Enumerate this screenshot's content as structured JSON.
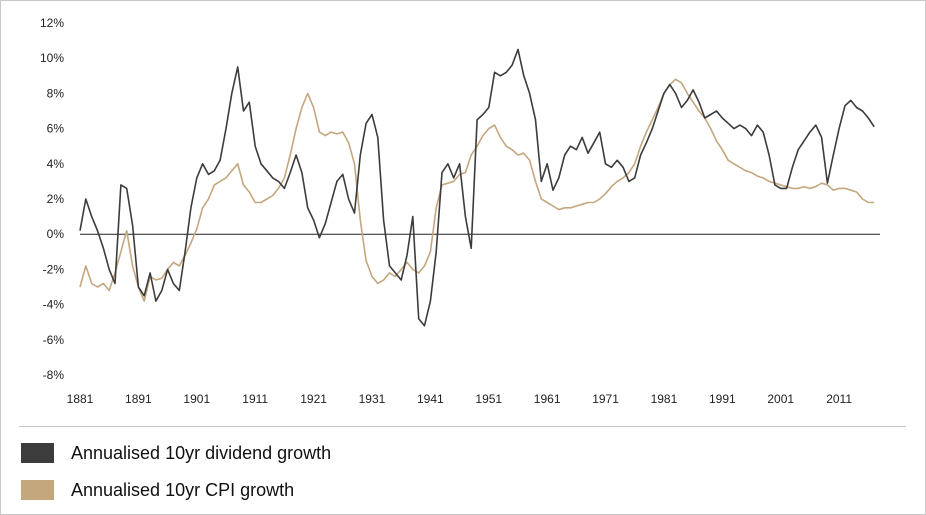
{
  "chart_data": {
    "type": "line",
    "title": "",
    "xlabel": "",
    "ylabel": "",
    "xlim": [
      1881,
      2018
    ],
    "ylim": [
      -8,
      12
    ],
    "y_ticks": [
      12,
      10,
      8,
      6,
      4,
      2,
      0,
      -2,
      -4,
      -6,
      -8
    ],
    "y_tick_labels": [
      "12%",
      "10%",
      "8%",
      "6%",
      "4%",
      "2%",
      "0%",
      "-2%",
      "-4%",
      "-6%",
      "-8%"
    ],
    "x_ticks": [
      1881,
      1891,
      1901,
      1911,
      1921,
      1931,
      1941,
      1951,
      1961,
      1971,
      1981,
      1991,
      2001,
      2011
    ],
    "x_tick_labels": [
      "1881",
      "1891",
      "1901",
      "1911",
      "1921",
      "1931",
      "1941",
      "1951",
      "1961",
      "1971",
      "1981",
      "1991",
      "2001",
      "2011"
    ],
    "grid": false,
    "legend_position": "bottom-left",
    "series": [
      {
        "name": "Annualised 10yr dividend growth",
        "color": "#3c3c3c",
        "x": [
          1881,
          1882,
          1883,
          1884,
          1885,
          1886,
          1887,
          1888,
          1889,
          1890,
          1891,
          1892,
          1893,
          1894,
          1895,
          1896,
          1897,
          1898,
          1899,
          1900,
          1901,
          1902,
          1903,
          1904,
          1905,
          1906,
          1907,
          1908,
          1909,
          1910,
          1911,
          1912,
          1913,
          1914,
          1915,
          1916,
          1917,
          1918,
          1919,
          1920,
          1921,
          1922,
          1923,
          1924,
          1925,
          1926,
          1927,
          1928,
          1929,
          1930,
          1931,
          1932,
          1933,
          1934,
          1935,
          1936,
          1937,
          1938,
          1939,
          1940,
          1941,
          1942,
          1943,
          1944,
          1945,
          1946,
          1947,
          1948,
          1949,
          1950,
          1951,
          1952,
          1953,
          1954,
          1955,
          1956,
          1957,
          1958,
          1959,
          1960,
          1961,
          1962,
          1963,
          1964,
          1965,
          1966,
          1967,
          1968,
          1969,
          1970,
          1971,
          1972,
          1973,
          1974,
          1975,
          1976,
          1977,
          1978,
          1979,
          1980,
          1981,
          1982,
          1983,
          1984,
          1985,
          1986,
          1987,
          1988,
          1989,
          1990,
          1991,
          1992,
          1993,
          1994,
          1995,
          1996,
          1997,
          1998,
          1999,
          2000,
          2001,
          2002,
          2003,
          2004,
          2005,
          2006,
          2007,
          2008,
          2009,
          2010,
          2011,
          2012,
          2013,
          2014,
          2015,
          2016,
          2017
        ],
        "values": [
          0.2,
          2.0,
          1.0,
          0.2,
          -0.8,
          -2.0,
          -2.8,
          2.8,
          2.6,
          0.5,
          -3.0,
          -3.5,
          -2.2,
          -3.8,
          -3.2,
          -2.0,
          -2.8,
          -3.2,
          -1.0,
          1.5,
          3.2,
          4.0,
          3.4,
          3.6,
          4.2,
          6.0,
          8.0,
          9.5,
          7.0,
          7.5,
          5.0,
          4.0,
          3.6,
          3.2,
          3.0,
          2.6,
          3.5,
          4.5,
          3.5,
          1.5,
          0.8,
          -0.2,
          0.6,
          1.8,
          3.0,
          3.4,
          2.0,
          1.2,
          4.5,
          6.3,
          6.8,
          5.5,
          0.8,
          -1.8,
          -2.2,
          -2.6,
          -1.2,
          1.0,
          -4.8,
          -5.2,
          -3.8,
          -1.0,
          3.5,
          4.0,
          3.2,
          4.0,
          1.0,
          -0.8,
          6.5,
          6.8,
          7.2,
          9.2,
          9.0,
          9.2,
          9.6,
          10.5,
          9.0,
          8.0,
          6.5,
          3.0,
          4.0,
          2.5,
          3.2,
          4.5,
          5.0,
          4.8,
          5.5,
          4.6,
          5.2,
          5.8,
          4.0,
          3.8,
          4.2,
          3.8,
          3.0,
          3.2,
          4.5,
          5.2,
          6.0,
          7.0,
          8.0,
          8.5,
          8.0,
          7.2,
          7.6,
          8.2,
          7.5,
          6.6,
          6.8,
          7.0,
          6.6,
          6.3,
          6.0,
          6.2,
          6.0,
          5.6,
          6.2,
          5.8,
          4.5,
          2.8,
          2.6,
          2.6,
          3.8,
          4.8,
          5.3,
          5.8,
          6.2,
          5.5,
          2.9,
          4.5,
          6.0,
          7.3,
          7.6,
          7.2,
          7.0,
          6.6,
          6.1
        ]
      },
      {
        "name": "Annualised 10yr CPI growth",
        "color": "#c4a77d",
        "x": [
          1881,
          1882,
          1883,
          1884,
          1885,
          1886,
          1887,
          1888,
          1889,
          1890,
          1891,
          1892,
          1893,
          1894,
          1895,
          1896,
          1897,
          1898,
          1899,
          1900,
          1901,
          1902,
          1903,
          1904,
          1905,
          1906,
          1907,
          1908,
          1909,
          1910,
          1911,
          1912,
          1913,
          1914,
          1915,
          1916,
          1917,
          1918,
          1919,
          1920,
          1921,
          1922,
          1923,
          1924,
          1925,
          1926,
          1927,
          1928,
          1929,
          1930,
          1931,
          1932,
          1933,
          1934,
          1935,
          1936,
          1937,
          1938,
          1939,
          1940,
          1941,
          1942,
          1943,
          1944,
          1945,
          1946,
          1947,
          1948,
          1949,
          1950,
          1951,
          1952,
          1953,
          1954,
          1955,
          1956,
          1957,
          1958,
          1959,
          1960,
          1961,
          1962,
          1963,
          1964,
          1965,
          1966,
          1967,
          1968,
          1969,
          1970,
          1971,
          1972,
          1973,
          1974,
          1975,
          1976,
          1977,
          1978,
          1979,
          1980,
          1981,
          1982,
          1983,
          1984,
          1985,
          1986,
          1987,
          1988,
          1989,
          1990,
          1991,
          1992,
          1993,
          1994,
          1995,
          1996,
          1997,
          1998,
          1999,
          2000,
          2001,
          2002,
          2003,
          2004,
          2005,
          2006,
          2007,
          2008,
          2009,
          2010,
          2011,
          2012,
          2013,
          2014,
          2015,
          2016,
          2017
        ],
        "values": [
          -3.0,
          -1.8,
          -2.8,
          -3.0,
          -2.8,
          -3.2,
          -2.2,
          -1.0,
          0.2,
          -1.8,
          -3.0,
          -3.8,
          -2.4,
          -2.6,
          -2.5,
          -2.0,
          -1.6,
          -1.8,
          -1.2,
          -0.5,
          0.3,
          1.5,
          2.0,
          2.8,
          3.0,
          3.2,
          3.6,
          4.0,
          2.8,
          2.4,
          1.8,
          1.8,
          2.0,
          2.2,
          2.6,
          3.2,
          4.5,
          6.0,
          7.2,
          8.0,
          7.2,
          5.8,
          5.6,
          5.8,
          5.7,
          5.8,
          5.2,
          4.0,
          0.8,
          -1.5,
          -2.4,
          -2.8,
          -2.6,
          -2.2,
          -2.4,
          -2.0,
          -1.6,
          -2.0,
          -2.2,
          -1.8,
          -1.0,
          1.5,
          2.8,
          2.9,
          3.0,
          3.4,
          3.5,
          4.5,
          5.0,
          5.6,
          6.0,
          6.2,
          5.5,
          5.0,
          4.8,
          4.5,
          4.6,
          4.2,
          3.0,
          2.0,
          1.8,
          1.6,
          1.4,
          1.5,
          1.5,
          1.6,
          1.7,
          1.8,
          1.8,
          2.0,
          2.3,
          2.7,
          3.0,
          3.2,
          3.5,
          4.0,
          5.0,
          5.8,
          6.5,
          7.2,
          8.0,
          8.5,
          8.8,
          8.6,
          8.0,
          7.5,
          7.0,
          6.6,
          6.0,
          5.3,
          4.8,
          4.2,
          4.0,
          3.8,
          3.6,
          3.5,
          3.3,
          3.2,
          3.0,
          2.9,
          2.8,
          2.7,
          2.6,
          2.6,
          2.7,
          2.6,
          2.7,
          2.9,
          2.8,
          2.5,
          2.6,
          2.6,
          2.5,
          2.4,
          2.0,
          1.8,
          1.8
        ]
      }
    ]
  },
  "legend": {
    "items": [
      {
        "label": "Annualised 10yr dividend growth",
        "color": "#3c3c3c"
      },
      {
        "label": "Annualised 10yr CPI growth",
        "color": "#c4a77d"
      }
    ]
  }
}
